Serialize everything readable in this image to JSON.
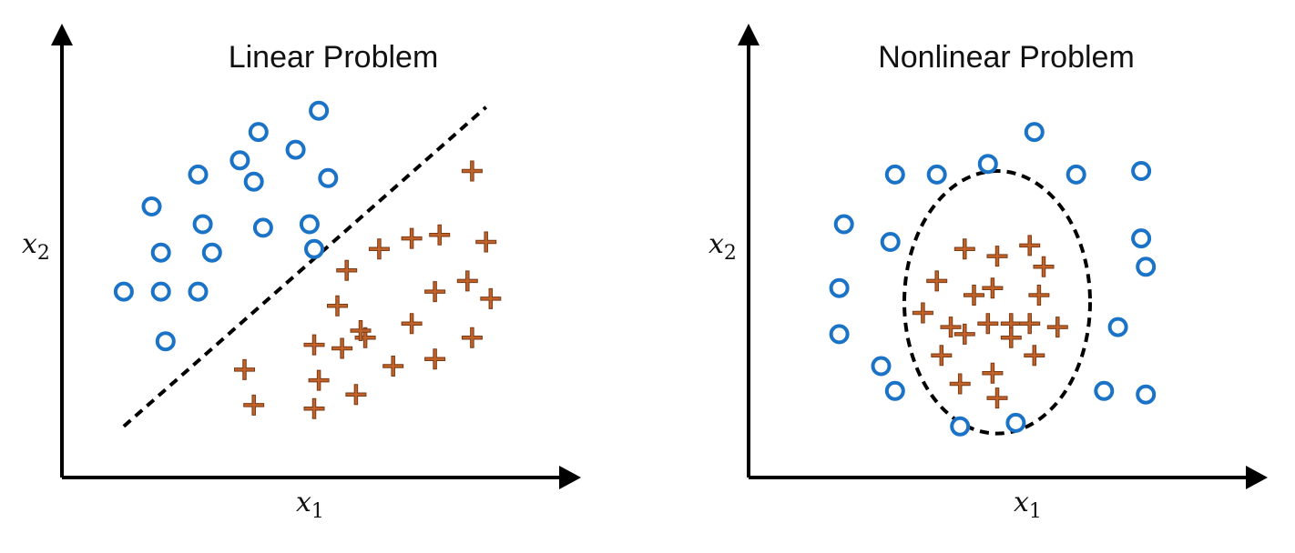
{
  "colors": {
    "circle_class": "#1a73c7",
    "plus_class": "#c0622a",
    "plus_outline": "#7a3a14",
    "axis": "#000000",
    "boundary": "#000000"
  },
  "class_markers": {
    "circle_class": "circle",
    "plus_class": "plus"
  },
  "chart_data": [
    {
      "type": "scatter",
      "title": "Linear Problem",
      "xlabel": "x",
      "xlabel_sub": "1",
      "ylabel": "x",
      "ylabel_sub": "2",
      "xlim": [
        0,
        100
      ],
      "ylim": [
        0,
        100
      ],
      "boundary": {
        "kind": "line",
        "style": "dashed",
        "from": [
          9,
          8
        ],
        "to": [
          87,
          98
        ]
      },
      "series": [
        {
          "marker": "circle",
          "points": [
            [
              9,
              46
            ],
            [
              17,
              46
            ],
            [
              25,
              46
            ],
            [
              18,
              32
            ],
            [
              17,
              57
            ],
            [
              28,
              57
            ],
            [
              26,
              65
            ],
            [
              15,
              70
            ],
            [
              25,
              79
            ],
            [
              34,
              83
            ],
            [
              39,
              64
            ],
            [
              37,
              77
            ],
            [
              38,
              91
            ],
            [
              46,
              86
            ],
            [
              49,
              65
            ],
            [
              53,
              78
            ],
            [
              51,
              97
            ],
            [
              50,
              58
            ]
          ]
        },
        {
          "marker": "plus",
          "points": [
            [
              84,
              80
            ],
            [
              77,
              62
            ],
            [
              87,
              60
            ],
            [
              64,
              58
            ],
            [
              71,
              61
            ],
            [
              57,
              52
            ],
            [
              83,
              49
            ],
            [
              76,
              46
            ],
            [
              55,
              42
            ],
            [
              61,
              33
            ],
            [
              71,
              37
            ],
            [
              88,
              44
            ],
            [
              50,
              31
            ],
            [
              84,
              33
            ],
            [
              51,
              21
            ],
            [
              35,
              24
            ],
            [
              37,
              14
            ],
            [
              50,
              13
            ],
            [
              59,
              17
            ],
            [
              67,
              25
            ],
            [
              76,
              27
            ],
            [
              60,
              35
            ],
            [
              56,
              30
            ]
          ]
        }
      ]
    },
    {
      "type": "scatter",
      "title": "Nonlinear Problem",
      "xlabel": "x",
      "xlabel_sub": "1",
      "ylabel": "x",
      "ylabel_sub": "2",
      "xlim": [
        0,
        100
      ],
      "ylim": [
        0,
        100
      ],
      "boundary": {
        "kind": "circle",
        "style": "dashed",
        "center": [
          50,
          43
        ],
        "radius_x": 20,
        "radius_y": 37
      },
      "series": [
        {
          "marker": "circle",
          "points": [
            [
              58,
              91
            ],
            [
              48,
              82
            ],
            [
              28,
              79
            ],
            [
              37,
              79
            ],
            [
              67,
              79
            ],
            [
              81,
              80
            ],
            [
              17,
              65
            ],
            [
              27,
              60
            ],
            [
              81,
              61
            ],
            [
              16,
              47
            ],
            [
              82,
              53
            ],
            [
              16,
              34
            ],
            [
              76,
              36
            ],
            [
              25,
              25
            ],
            [
              28,
              18
            ],
            [
              73,
              18
            ],
            [
              82,
              17
            ],
            [
              42,
              8
            ],
            [
              54,
              9
            ]
          ]
        },
        {
          "marker": "plus",
          "points": [
            [
              43,
              58
            ],
            [
              50,
              56
            ],
            [
              57,
              59
            ],
            [
              60,
              53
            ],
            [
              37,
              49
            ],
            [
              45,
              45
            ],
            [
              49,
              47
            ],
            [
              59,
              45
            ],
            [
              34,
              40
            ],
            [
              40,
              36
            ],
            [
              48,
              37
            ],
            [
              53,
              37
            ],
            [
              57,
              37
            ],
            [
              63,
              36
            ],
            [
              43,
              34
            ],
            [
              53,
              33
            ],
            [
              38,
              28
            ],
            [
              58,
              28
            ],
            [
              49,
              23
            ],
            [
              42,
              20
            ],
            [
              50,
              16
            ]
          ]
        }
      ]
    }
  ]
}
